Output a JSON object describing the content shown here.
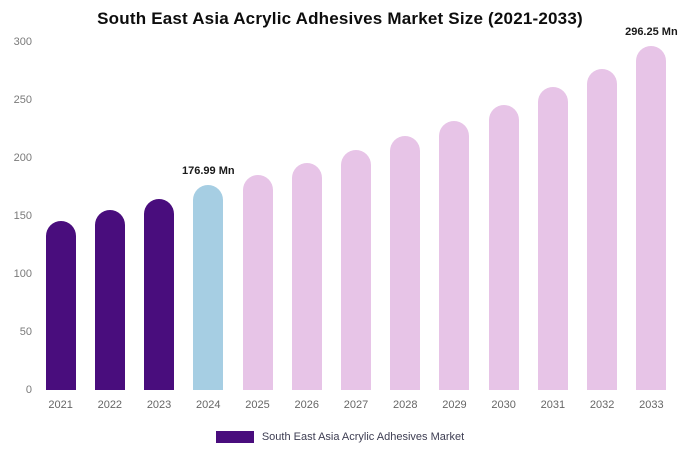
{
  "chart_data": {
    "type": "bar",
    "title": "South East Asia Acrylic Adhesives Market Size (2021-2033)",
    "categories": [
      "2021",
      "2022",
      "2023",
      "2024",
      "2025",
      "2026",
      "2027",
      "2028",
      "2029",
      "2030",
      "2031",
      "2032",
      "2033"
    ],
    "values": [
      146,
      155,
      165,
      176.99,
      185,
      196,
      207,
      219,
      232,
      246,
      261,
      277,
      296.25
    ],
    "unit": "Mn",
    "xlabel": "",
    "ylabel": "",
    "ylim": [
      0,
      300
    ],
    "y_ticks": [
      0,
      50,
      100,
      150,
      200,
      250,
      300
    ],
    "grid": false,
    "colors": {
      "historical": "#490d7d",
      "current_year": "#a6cee3",
      "forecast": "#e7c4e7"
    },
    "bar_colors": [
      "#490d7d",
      "#490d7d",
      "#490d7d",
      "#a6cee3",
      "#e7c4e7",
      "#e7c4e7",
      "#e7c4e7",
      "#e7c4e7",
      "#e7c4e7",
      "#e7c4e7",
      "#e7c4e7",
      "#e7c4e7",
      "#e7c4e7"
    ],
    "annotations": [
      {
        "category": "2024",
        "text": "176.99 Mn"
      },
      {
        "category": "2033",
        "text": "296.25 Mn"
      }
    ],
    "legend": {
      "label": "South East Asia Acrylic Adhesives Market",
      "color": "#490d7d",
      "position": "bottom"
    }
  }
}
